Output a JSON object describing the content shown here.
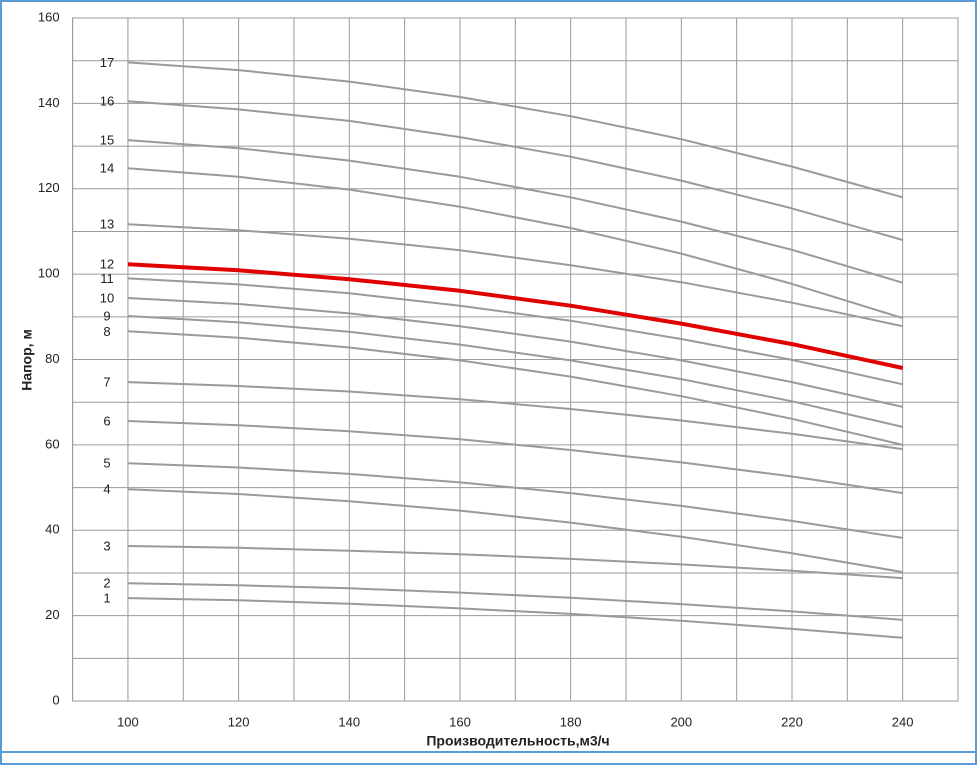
{
  "chart_data": {
    "type": "line",
    "xlabel": "Производительность,м3/ч",
    "ylabel": "Напор, м",
    "x": [
      100,
      120,
      140,
      160,
      180,
      200,
      220,
      240
    ],
    "xlim": [
      90,
      250
    ],
    "xticks": [
      100,
      120,
      140,
      160,
      180,
      200,
      220,
      240
    ],
    "x_minor_ticks": [
      90,
      110,
      130,
      150,
      170,
      190,
      210,
      230,
      250
    ],
    "ylim": [
      0,
      160
    ],
    "yticks": [
      0,
      20,
      40,
      60,
      80,
      100,
      120,
      140,
      160
    ],
    "y_minor_ticks": [
      10,
      30,
      50,
      70,
      90,
      110,
      130,
      150
    ],
    "grid": true,
    "series": [
      {
        "name": "1",
        "color": "#9a9a9a",
        "values": [
          24.1,
          23.6,
          22.8,
          21.7,
          20.4,
          18.8,
          16.9,
          14.8
        ]
      },
      {
        "name": "2",
        "color": "#9a9a9a",
        "values": [
          27.6,
          27.1,
          26.4,
          25.4,
          24.2,
          22.7,
          21.0,
          19.0
        ]
      },
      {
        "name": "3",
        "color": "#9a9a9a",
        "values": [
          36.3,
          35.9,
          35.2,
          34.4,
          33.3,
          32.0,
          30.5,
          28.8
        ]
      },
      {
        "name": "4",
        "color": "#9a9a9a",
        "values": [
          49.6,
          48.5,
          46.8,
          44.6,
          41.8,
          38.5,
          34.6,
          30.2
        ]
      },
      {
        "name": "5",
        "color": "#9a9a9a",
        "values": [
          55.7,
          54.7,
          53.2,
          51.2,
          48.7,
          45.7,
          42.2,
          38.2
        ]
      },
      {
        "name": "6",
        "color": "#9a9a9a",
        "values": [
          65.6,
          64.6,
          63.2,
          61.3,
          58.8,
          55.9,
          52.6,
          48.7
        ]
      },
      {
        "name": "7",
        "color": "#9a9a9a",
        "values": [
          74.7,
          73.8,
          72.5,
          70.7,
          68.4,
          65.7,
          62.6,
          59.0
        ]
      },
      {
        "name": "8",
        "color": "#9a9a9a",
        "values": [
          86.6,
          85.1,
          82.8,
          79.8,
          76.0,
          71.4,
          66.1,
          60.0
        ]
      },
      {
        "name": "9",
        "color": "#9a9a9a",
        "values": [
          90.2,
          88.7,
          86.5,
          83.5,
          79.8,
          75.4,
          70.2,
          64.2
        ]
      },
      {
        "name": "10",
        "color": "#9a9a9a",
        "values": [
          94.4,
          93.0,
          90.8,
          87.8,
          84.2,
          79.8,
          74.7,
          68.9
        ]
      },
      {
        "name": "11",
        "color": "#9a9a9a",
        "values": [
          99.0,
          97.6,
          95.5,
          92.6,
          89.1,
          84.8,
          79.9,
          74.2
        ]
      },
      {
        "name": "12",
        "color": "#e00000",
        "values": [
          102.3,
          100.9,
          98.8,
          96.1,
          92.6,
          88.4,
          83.6,
          78.0
        ]
      },
      {
        "name": "13",
        "color": "#9a9a9a",
        "values": [
          111.7,
          110.3,
          108.3,
          105.6,
          102.1,
          98.1,
          93.3,
          87.8
        ]
      },
      {
        "name": "14",
        "color": "#9a9a9a",
        "values": [
          124.8,
          122.8,
          119.8,
          115.8,
          110.8,
          104.8,
          97.7,
          89.7
        ]
      },
      {
        "name": "15",
        "color": "#9a9a9a",
        "values": [
          131.4,
          129.5,
          126.6,
          122.8,
          118.0,
          112.3,
          105.7,
          98.0
        ]
      },
      {
        "name": "16",
        "color": "#9a9a9a",
        "values": [
          140.5,
          138.6,
          135.9,
          132.1,
          127.5,
          121.9,
          115.4,
          108.0
        ]
      },
      {
        "name": "17",
        "color": "#9a9a9a",
        "values": [
          149.6,
          147.8,
          145.1,
          141.5,
          137.0,
          131.6,
          125.2,
          118.0
        ]
      }
    ]
  }
}
